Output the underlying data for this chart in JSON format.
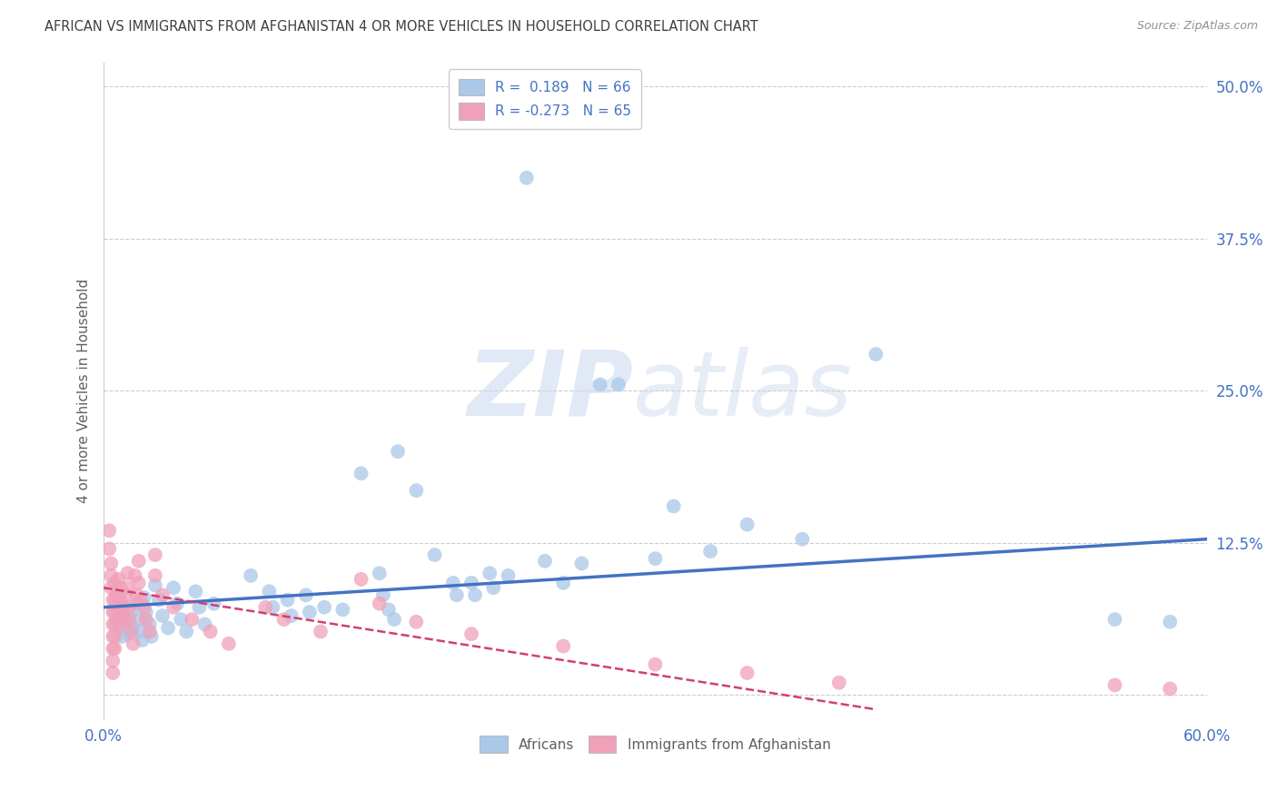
{
  "title": "AFRICAN VS IMMIGRANTS FROM AFGHANISTAN 4 OR MORE VEHICLES IN HOUSEHOLD CORRELATION CHART",
  "source": "Source: ZipAtlas.com",
  "ylabel": "4 or more Vehicles in Household",
  "xlabel": "",
  "xlim": [
    0.0,
    0.6
  ],
  "ylim": [
    -0.02,
    0.52
  ],
  "plot_ylim": [
    -0.02,
    0.52
  ],
  "xticks": [
    0.0,
    0.1,
    0.2,
    0.3,
    0.4,
    0.5,
    0.6
  ],
  "xticklabels": [
    "0.0%",
    "",
    "",
    "",
    "",
    "",
    "60.0%"
  ],
  "yticks_right": [
    0.0,
    0.125,
    0.25,
    0.375,
    0.5
  ],
  "ytick_labels_right": [
    "",
    "12.5%",
    "25.0%",
    "37.5%",
    "50.0%"
  ],
  "legend_r_blue": "R =  0.189   N = 66",
  "legend_r_pink": "R = -0.273   N = 65",
  "blue_color": "#aac8e8",
  "pink_color": "#f0a0b8",
  "blue_line_color": "#4472c4",
  "pink_line_color": "#d04070",
  "blue_scatter": [
    [
      0.008,
      0.065
    ],
    [
      0.01,
      0.055
    ],
    [
      0.01,
      0.048
    ],
    [
      0.011,
      0.072
    ],
    [
      0.012,
      0.06
    ],
    [
      0.013,
      0.05
    ],
    [
      0.015,
      0.068
    ],
    [
      0.016,
      0.055
    ],
    [
      0.018,
      0.075
    ],
    [
      0.019,
      0.062
    ],
    [
      0.02,
      0.052
    ],
    [
      0.021,
      0.045
    ],
    [
      0.022,
      0.08
    ],
    [
      0.023,
      0.068
    ],
    [
      0.025,
      0.058
    ],
    [
      0.026,
      0.048
    ],
    [
      0.028,
      0.09
    ],
    [
      0.03,
      0.078
    ],
    [
      0.032,
      0.065
    ],
    [
      0.035,
      0.055
    ],
    [
      0.038,
      0.088
    ],
    [
      0.04,
      0.075
    ],
    [
      0.042,
      0.062
    ],
    [
      0.045,
      0.052
    ],
    [
      0.05,
      0.085
    ],
    [
      0.052,
      0.072
    ],
    [
      0.055,
      0.058
    ],
    [
      0.06,
      0.075
    ],
    [
      0.08,
      0.098
    ],
    [
      0.09,
      0.085
    ],
    [
      0.092,
      0.072
    ],
    [
      0.1,
      0.078
    ],
    [
      0.102,
      0.065
    ],
    [
      0.11,
      0.082
    ],
    [
      0.112,
      0.068
    ],
    [
      0.12,
      0.072
    ],
    [
      0.13,
      0.07
    ],
    [
      0.14,
      0.182
    ],
    [
      0.15,
      0.1
    ],
    [
      0.152,
      0.082
    ],
    [
      0.155,
      0.07
    ],
    [
      0.158,
      0.062
    ],
    [
      0.16,
      0.2
    ],
    [
      0.17,
      0.168
    ],
    [
      0.18,
      0.115
    ],
    [
      0.19,
      0.092
    ],
    [
      0.192,
      0.082
    ],
    [
      0.2,
      0.092
    ],
    [
      0.202,
      0.082
    ],
    [
      0.21,
      0.1
    ],
    [
      0.212,
      0.088
    ],
    [
      0.22,
      0.098
    ],
    [
      0.23,
      0.425
    ],
    [
      0.24,
      0.11
    ],
    [
      0.25,
      0.092
    ],
    [
      0.26,
      0.108
    ],
    [
      0.27,
      0.255
    ],
    [
      0.28,
      0.255
    ],
    [
      0.3,
      0.112
    ],
    [
      0.31,
      0.155
    ],
    [
      0.33,
      0.118
    ],
    [
      0.35,
      0.14
    ],
    [
      0.38,
      0.128
    ],
    [
      0.42,
      0.28
    ],
    [
      0.55,
      0.062
    ],
    [
      0.58,
      0.06
    ]
  ],
  "pink_scatter": [
    [
      0.003,
      0.135
    ],
    [
      0.003,
      0.12
    ],
    [
      0.004,
      0.108
    ],
    [
      0.004,
      0.098
    ],
    [
      0.004,
      0.088
    ],
    [
      0.005,
      0.078
    ],
    [
      0.005,
      0.068
    ],
    [
      0.005,
      0.058
    ],
    [
      0.005,
      0.048
    ],
    [
      0.005,
      0.038
    ],
    [
      0.005,
      0.028
    ],
    [
      0.005,
      0.018
    ],
    [
      0.006,
      0.092
    ],
    [
      0.006,
      0.078
    ],
    [
      0.006,
      0.068
    ],
    [
      0.006,
      0.058
    ],
    [
      0.006,
      0.048
    ],
    [
      0.006,
      0.038
    ],
    [
      0.007,
      0.082
    ],
    [
      0.007,
      0.072
    ],
    [
      0.007,
      0.062
    ],
    [
      0.008,
      0.095
    ],
    [
      0.008,
      0.082
    ],
    [
      0.008,
      0.072
    ],
    [
      0.009,
      0.088
    ],
    [
      0.009,
      0.078
    ],
    [
      0.009,
      0.068
    ],
    [
      0.009,
      0.058
    ],
    [
      0.01,
      0.072
    ],
    [
      0.011,
      0.062
    ],
    [
      0.012,
      0.082
    ],
    [
      0.013,
      0.1
    ],
    [
      0.013,
      0.088
    ],
    [
      0.014,
      0.072
    ],
    [
      0.014,
      0.062
    ],
    [
      0.015,
      0.052
    ],
    [
      0.016,
      0.042
    ],
    [
      0.017,
      0.098
    ],
    [
      0.018,
      0.082
    ],
    [
      0.019,
      0.11
    ],
    [
      0.019,
      0.092
    ],
    [
      0.02,
      0.078
    ],
    [
      0.022,
      0.072
    ],
    [
      0.023,
      0.062
    ],
    [
      0.025,
      0.052
    ],
    [
      0.028,
      0.115
    ],
    [
      0.028,
      0.098
    ],
    [
      0.032,
      0.082
    ],
    [
      0.038,
      0.072
    ],
    [
      0.048,
      0.062
    ],
    [
      0.058,
      0.052
    ],
    [
      0.068,
      0.042
    ],
    [
      0.088,
      0.072
    ],
    [
      0.098,
      0.062
    ],
    [
      0.118,
      0.052
    ],
    [
      0.14,
      0.095
    ],
    [
      0.15,
      0.075
    ],
    [
      0.17,
      0.06
    ],
    [
      0.2,
      0.05
    ],
    [
      0.25,
      0.04
    ],
    [
      0.3,
      0.025
    ],
    [
      0.35,
      0.018
    ],
    [
      0.4,
      0.01
    ],
    [
      0.55,
      0.008
    ],
    [
      0.58,
      0.005
    ]
  ],
  "blue_line_x": [
    0.0,
    0.6
  ],
  "blue_line_y": [
    0.072,
    0.128
  ],
  "pink_line_x": [
    0.0,
    0.42
  ],
  "pink_line_y": [
    0.088,
    -0.012
  ],
  "background_color": "#ffffff",
  "grid_color": "#cccccc",
  "title_color": "#404040",
  "axis_label_color": "#4472c4",
  "watermark_top": "ZIP",
  "watermark_bottom": "atlas"
}
